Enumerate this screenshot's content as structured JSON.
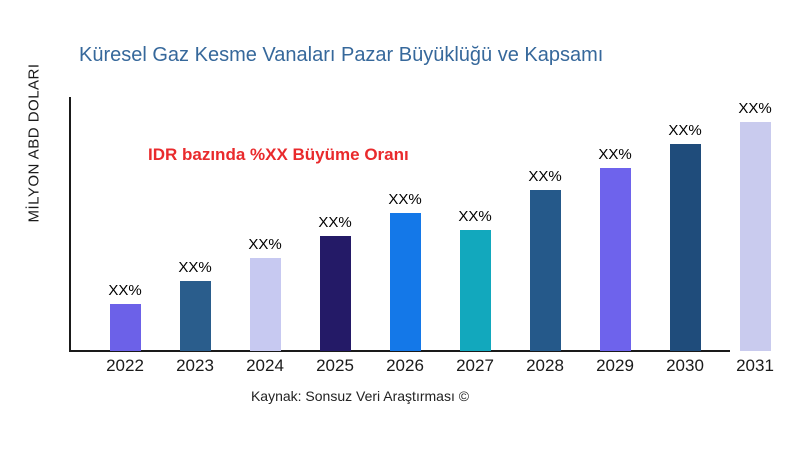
{
  "chart_data": {
    "type": "bar",
    "title": "Küresel Gaz Kesme Vanaları Pazar Büyüklüğü ve Kapsamı",
    "ylabel": "MİLYON ABD DOLARI",
    "xlabel": "",
    "annotation": "IDR bazında %XX Büyüme Oranı",
    "source": "Kaynak: Sonsuz Veri Araştırması ©",
    "categories": [
      "2022",
      "2023",
      "2024",
      "2025",
      "2026",
      "2027",
      "2028",
      "2029",
      "2030",
      "2031"
    ],
    "values": [
      47,
      70,
      93,
      115,
      138,
      121,
      161,
      183,
      207,
      229
    ],
    "values_unit": "relative-bar-height-px (y-axis unlabeled, values shown as XX%)",
    "value_labels": [
      "XX%",
      "XX%",
      "XX%",
      "XX%",
      "XX%",
      "XX%",
      "XX%",
      "XX%",
      "XX%",
      "XX%"
    ],
    "bar_colors": [
      "#6C61E8",
      "#2A5D8C",
      "#C7C9F1",
      "#241A67",
      "#1478E8",
      "#12A8BD",
      "#25598A",
      "#6E63EC",
      "#1F4C7B",
      "#C9CBEE"
    ],
    "grid": false,
    "legend": null,
    "y_tick_labels": [],
    "colors": {
      "title": "#36689B",
      "annotation": "#E92A2C",
      "axis": "#1A1A1A",
      "background": "#FFFFFF"
    }
  }
}
